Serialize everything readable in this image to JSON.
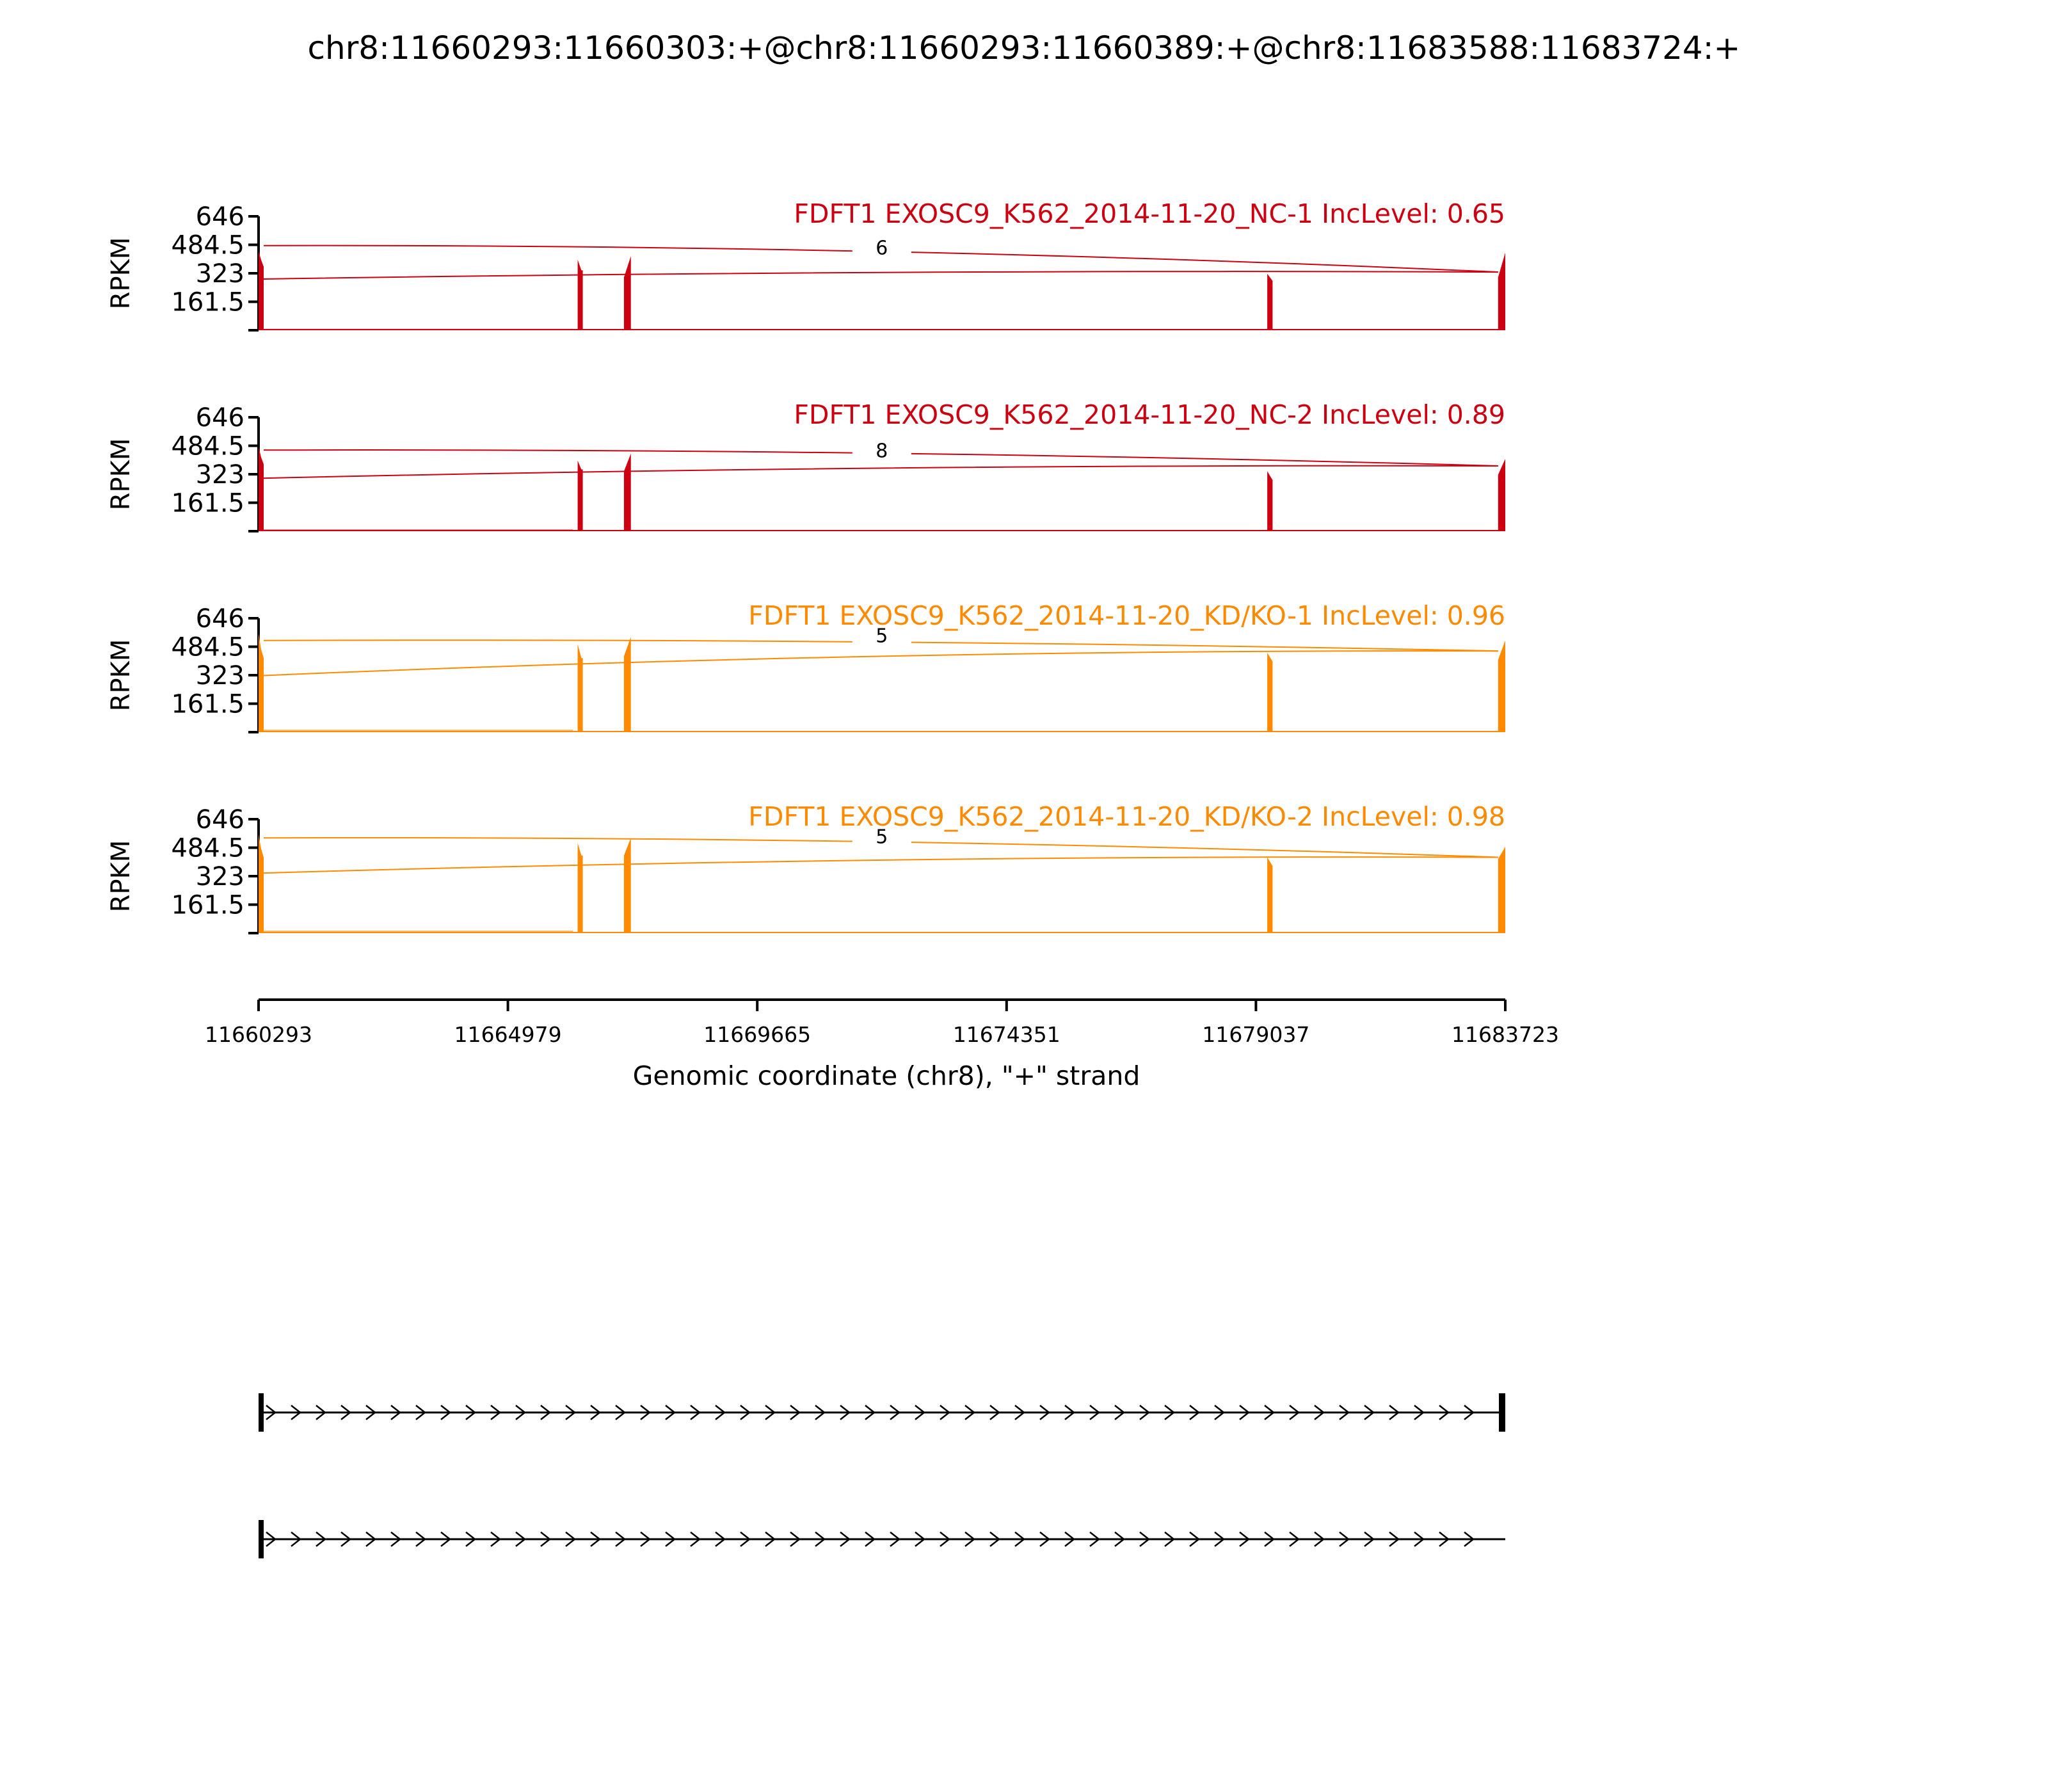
{
  "title": "chr8:11660293:11660303:+@chr8:11660293:11660389:+@chr8:11683588:11683724:+",
  "colors": {
    "nc": "#cc0011",
    "kd": "#ff8a00",
    "axis": "#000000"
  },
  "chart_data": {
    "type": "area",
    "title": "chr8:11660293:11660303:+@chr8:11660293:11660389:+@chr8:11683588:11683724:+",
    "ylabel": "RPKM",
    "xlabel": "Genomic coordinate (chr8), \"+\" strand",
    "xlim": [
      11660293,
      11683723
    ],
    "ylim": [
      0,
      646
    ],
    "y_ticks": [
      "161.5",
      "323",
      "484.5",
      "646"
    ],
    "x_ticks": [
      11660293,
      11664979,
      11669665,
      11674351,
      11679037,
      11683723
    ],
    "exons": [
      {
        "start": 11660293,
        "end": 11660389
      },
      {
        "start": 11666290,
        "end": 11666360
      },
      {
        "start": 11667160,
        "end": 11667290
      },
      {
        "start": 11679250,
        "end": 11679350
      },
      {
        "start": 11683588,
        "end": 11683723
      }
    ],
    "series": [
      {
        "name": "FDFT1 EXOSC9_K562_2014-11-20_NC-1 IncLevel: 0.65",
        "color": "nc",
        "junction_count": "6",
        "exon_peaks": [
          {
            "x": 11660293,
            "y": 450
          },
          {
            "x": 11660340,
            "y": 400
          },
          {
            "x": 11660389,
            "y": 360
          },
          {
            "x": 11666290,
            "y": 400
          },
          {
            "x": 11666360,
            "y": 340
          },
          {
            "x": 11667160,
            "y": 300
          },
          {
            "x": 11667290,
            "y": 420
          },
          {
            "x": 11679250,
            "y": 320
          },
          {
            "x": 11679350,
            "y": 280
          },
          {
            "x": 11683588,
            "y": 300
          },
          {
            "x": 11683723,
            "y": 440
          }
        ],
        "background": 8,
        "junctions": [
          {
            "from": 11660389,
            "to": 11683588,
            "start_y": 480,
            "end_y": 330,
            "peak_y": 550
          },
          {
            "from": 11660303,
            "to": 11683588,
            "start_y": 290,
            "end_y": 330,
            "peak_y": 480
          }
        ]
      },
      {
        "name": "FDFT1 EXOSC9_K562_2014-11-20_NC-2 IncLevel: 0.89",
        "color": "nc",
        "junction_count": "8",
        "exon_peaks": [
          {
            "x": 11660293,
            "y": 480
          },
          {
            "x": 11660340,
            "y": 420
          },
          {
            "x": 11660389,
            "y": 380
          },
          {
            "x": 11666290,
            "y": 400
          },
          {
            "x": 11666360,
            "y": 350
          },
          {
            "x": 11667160,
            "y": 340
          },
          {
            "x": 11667290,
            "y": 440
          },
          {
            "x": 11679250,
            "y": 340
          },
          {
            "x": 11679350,
            "y": 290
          },
          {
            "x": 11683588,
            "y": 320
          },
          {
            "x": 11683723,
            "y": 410
          }
        ],
        "background": 10,
        "junctions": [
          {
            "from": 11660389,
            "to": 11683588,
            "start_y": 460,
            "end_y": 370,
            "peak_y": 550
          },
          {
            "from": 11660303,
            "to": 11683588,
            "start_y": 300,
            "end_y": 370,
            "peak_y": 470
          }
        ]
      },
      {
        "name": "FDFT1 EXOSC9_K562_2014-11-20_KD/KO-1 IncLevel: 0.96",
        "color": "kd",
        "junction_count": "5",
        "exon_peaks": [
          {
            "x": 11660293,
            "y": 560
          },
          {
            "x": 11660340,
            "y": 470
          },
          {
            "x": 11660389,
            "y": 420
          },
          {
            "x": 11666290,
            "y": 500
          },
          {
            "x": 11666360,
            "y": 420
          },
          {
            "x": 11667160,
            "y": 430
          },
          {
            "x": 11667290,
            "y": 540
          },
          {
            "x": 11679250,
            "y": 450
          },
          {
            "x": 11679350,
            "y": 400
          },
          {
            "x": 11683588,
            "y": 410
          },
          {
            "x": 11683723,
            "y": 520
          }
        ],
        "background": 14,
        "junctions": [
          {
            "from": 11660389,
            "to": 11683588,
            "start_y": 520,
            "end_y": 460,
            "peak_y": 640
          },
          {
            "from": 11660303,
            "to": 11683588,
            "start_y": 320,
            "end_y": 460,
            "peak_y": 560
          }
        ]
      },
      {
        "name": "FDFT1 EXOSC9_K562_2014-11-20_KD/KO-2 IncLevel: 0.98",
        "color": "kd",
        "junction_count": "5",
        "exon_peaks": [
          {
            "x": 11660293,
            "y": 560
          },
          {
            "x": 11660340,
            "y": 480
          },
          {
            "x": 11660389,
            "y": 430
          },
          {
            "x": 11666290,
            "y": 510
          },
          {
            "x": 11666360,
            "y": 440
          },
          {
            "x": 11667160,
            "y": 440
          },
          {
            "x": 11667290,
            "y": 540
          },
          {
            "x": 11679250,
            "y": 430
          },
          {
            "x": 11679350,
            "y": 380
          },
          {
            "x": 11683588,
            "y": 420
          },
          {
            "x": 11683723,
            "y": 490
          }
        ],
        "background": 14,
        "junctions": [
          {
            "from": 11660389,
            "to": 11683588,
            "start_y": 540,
            "end_y": 430,
            "peak_y": 645
          },
          {
            "from": 11660303,
            "to": 11683588,
            "start_y": 340,
            "end_y": 430,
            "peak_y": 560
          }
        ]
      }
    ],
    "isoforms": [
      {
        "start": 11660293,
        "end": 11683723,
        "exons": [
          11660293,
          11683588
        ]
      },
      {
        "start": 11660293,
        "end": 11683723,
        "exons": [
          11660293
        ]
      }
    ]
  }
}
